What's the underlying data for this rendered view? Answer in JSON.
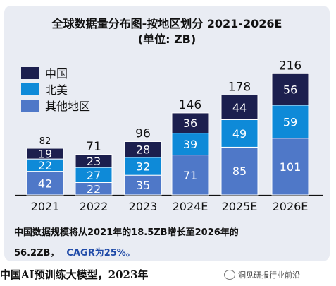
{
  "title_line1": "全球数据量分布图-按地区划分 2021-2026E",
  "title_line2": "(单位: ZB)",
  "colors": {
    "china": "#1c1f4e",
    "north_america": "#0e8ad8",
    "other": "#4f78c8"
  },
  "chart_data": {
    "type": "bar",
    "stacked": true,
    "categories": [
      "2021",
      "2022",
      "2023",
      "2024E",
      "2025E",
      "2026E"
    ],
    "series": [
      {
        "name": "其他地区",
        "values": [
          42,
          22,
          35,
          71,
          85,
          101
        ]
      },
      {
        "name": "北美",
        "values": [
          22,
          27,
          32,
          39,
          49,
          59
        ]
      },
      {
        "name": "中国",
        "values": [
          19,
          23,
          28,
          36,
          44,
          56
        ]
      }
    ],
    "totals": [
      "82",
      "71",
      "96",
      "146",
      "178",
      "216"
    ],
    "legend": [
      "中国",
      "北美",
      "其他地区"
    ],
    "legend_position": "top-left",
    "ylim": [
      0,
      216
    ],
    "grid": false
  },
  "note_line1": "中国数据规模将从2021年的18.5ZB增长至2026年的",
  "note_line2": "56.2ZB，",
  "note_cagr": "CAGR为25%。",
  "footer_text": "中国AI预训练大模型，2023年",
  "watermark": "洞见研报行业前沿"
}
